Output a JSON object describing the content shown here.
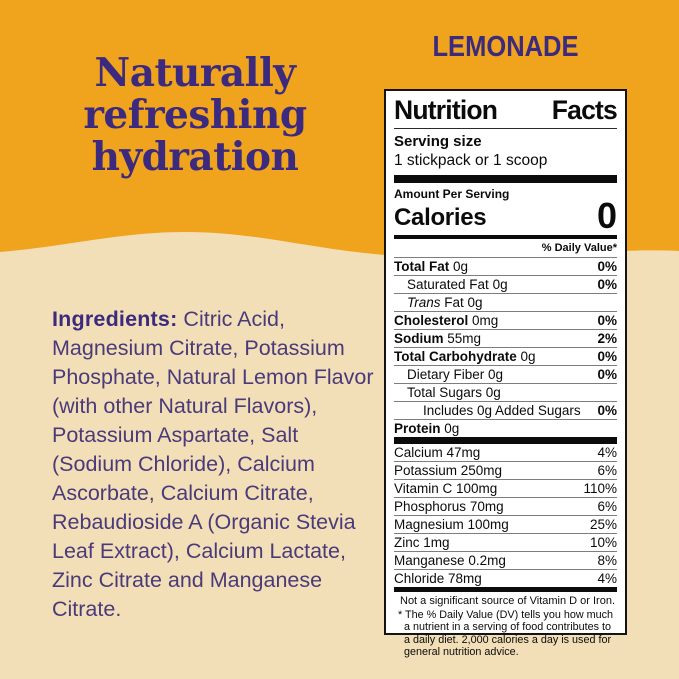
{
  "colors": {
    "gold": "#F0A41E",
    "cream": "#F2DFB8",
    "purple_heading": "#3B2A7E",
    "purple_body": "#4A3A7A",
    "label_bg": "#FFFFFF",
    "label_ink": "#0B0B0B"
  },
  "hero": {
    "headline_lines": [
      "Naturally",
      "refreshing",
      "hydration"
    ],
    "flavor": "LEMONADE"
  },
  "ingredients": {
    "label": "Ingredients:",
    "text": "Citric Acid, Magnesium Citrate, Potassium Phosphate, Natural Lemon Flavor (with other Natural Flavors), Potassium Aspartate, Salt (Sodium Chloride), Calcium Ascorbate, Calcium Citrate, Rebaudioside A (Organic Stevia Leaf Extract), Calcium Lactate, Zinc Citrate and Manganese Citrate."
  },
  "nutrition": {
    "title_left": "Nutrition",
    "title_right": "Facts",
    "serving_size_label": "Serving size",
    "serving_size_value": "1 stickpack or 1 scoop",
    "amount_per_serving": "Amount Per Serving",
    "calories_label": "Calories",
    "calories_value": "0",
    "daily_value_header": "% Daily Value*",
    "rows": [
      {
        "label": "Total Fat",
        "bold": true,
        "italic": false,
        "rest": "0g",
        "dv": "0%",
        "indent": 0
      },
      {
        "label": "Saturated Fat",
        "bold": false,
        "italic": false,
        "rest": "0g",
        "dv": "0%",
        "indent": 1
      },
      {
        "label": "Trans",
        "bold": false,
        "italic": true,
        "rest": "Fat 0g",
        "dv": "",
        "indent": 1
      },
      {
        "label": "Cholesterol",
        "bold": true,
        "italic": false,
        "rest": "0mg",
        "dv": "0%",
        "indent": 0
      },
      {
        "label": "Sodium",
        "bold": true,
        "italic": false,
        "rest": "55mg",
        "dv": "2%",
        "indent": 0
      },
      {
        "label": "Total Carbohydrate",
        "bold": true,
        "italic": false,
        "rest": "0g",
        "dv": "0%",
        "indent": 0
      },
      {
        "label": "Dietary Fiber",
        "bold": false,
        "italic": false,
        "rest": "0g",
        "dv": "0%",
        "indent": 1
      },
      {
        "label": "Total Sugars",
        "bold": false,
        "italic": false,
        "rest": "0g",
        "dv": "",
        "indent": 1
      },
      {
        "label": "Includes 0g Added Sugars",
        "bold": false,
        "italic": false,
        "rest": "",
        "dv": "0%",
        "indent": 2
      },
      {
        "label": "Protein",
        "bold": true,
        "italic": false,
        "rest": "0g",
        "dv": "",
        "indent": 0
      }
    ],
    "minerals": [
      {
        "label": "Calcium",
        "rest": "47mg",
        "dv": "4%"
      },
      {
        "label": "Potassium",
        "rest": "250mg",
        "dv": "6%"
      },
      {
        "label": "Vitamin C",
        "rest": "100mg",
        "dv": "110%"
      },
      {
        "label": "Phosphorus",
        "rest": "70mg",
        "dv": "6%"
      },
      {
        "label": "Magnesium",
        "rest": "100mg",
        "dv": "25%"
      },
      {
        "label": "Zinc",
        "rest": "1mg",
        "dv": "10%"
      },
      {
        "label": "Manganese",
        "rest": "0.2mg",
        "dv": "8%"
      },
      {
        "label": "Chloride",
        "rest": "78mg",
        "dv": "4%"
      }
    ],
    "note": "Not a significant source of Vitamin D or Iron.",
    "footnote_marker": "*",
    "footnote": "The % Daily Value (DV) tells you how much a nutrient in a serving of food contributes to a daily diet. 2,000 calories a day is used for general nutrition advice."
  }
}
